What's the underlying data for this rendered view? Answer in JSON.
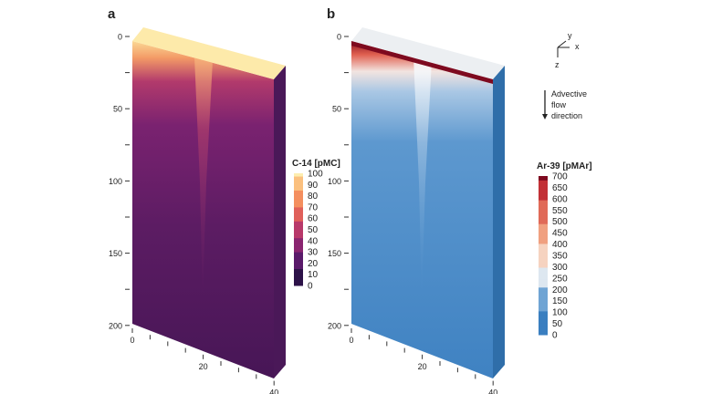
{
  "chart_data": [
    {
      "type": "heatmap",
      "panel_label": "a",
      "colorbar_title": "C-14 [pMC]",
      "colorbar_ticks": [
        0,
        10,
        20,
        30,
        40,
        50,
        60,
        70,
        80,
        90,
        100
      ],
      "colormap": [
        "#2d1248",
        "#5a1a6a",
        "#8a2570",
        "#b8396a",
        "#e0605a",
        "#f48f5f",
        "#fbc07f",
        "#fdeeb0"
      ],
      "depth_ticks": [
        "0",
        "",
        "50",
        "",
        "100",
        "",
        "150",
        "",
        "200"
      ],
      "x_ticks": [
        "0",
        "",
        "",
        "",
        "20",
        "",
        "",
        "",
        "40"
      ]
    },
    {
      "type": "heatmap",
      "panel_label": "b",
      "colorbar_title": "Ar-39 [pMAr]",
      "colorbar_ticks": [
        0,
        50,
        100,
        150,
        200,
        250,
        300,
        350,
        400,
        450,
        500,
        550,
        600,
        650,
        700
      ],
      "colormap": [
        "#3a7fc0",
        "#6fa4d4",
        "#dde7f0",
        "#f6d3c0",
        "#f0a080",
        "#e06a58",
        "#c23036",
        "#7e0a1f"
      ],
      "depth_ticks": [
        "0",
        "",
        "50",
        "",
        "100",
        "",
        "150",
        "",
        "200"
      ],
      "x_ticks": [
        "0",
        "",
        "",
        "",
        "20",
        "",
        "",
        "",
        "40"
      ]
    }
  ],
  "axes_glyph": {
    "y": "y",
    "x": "x",
    "z": "z"
  },
  "annotation": "Advective flow direction"
}
